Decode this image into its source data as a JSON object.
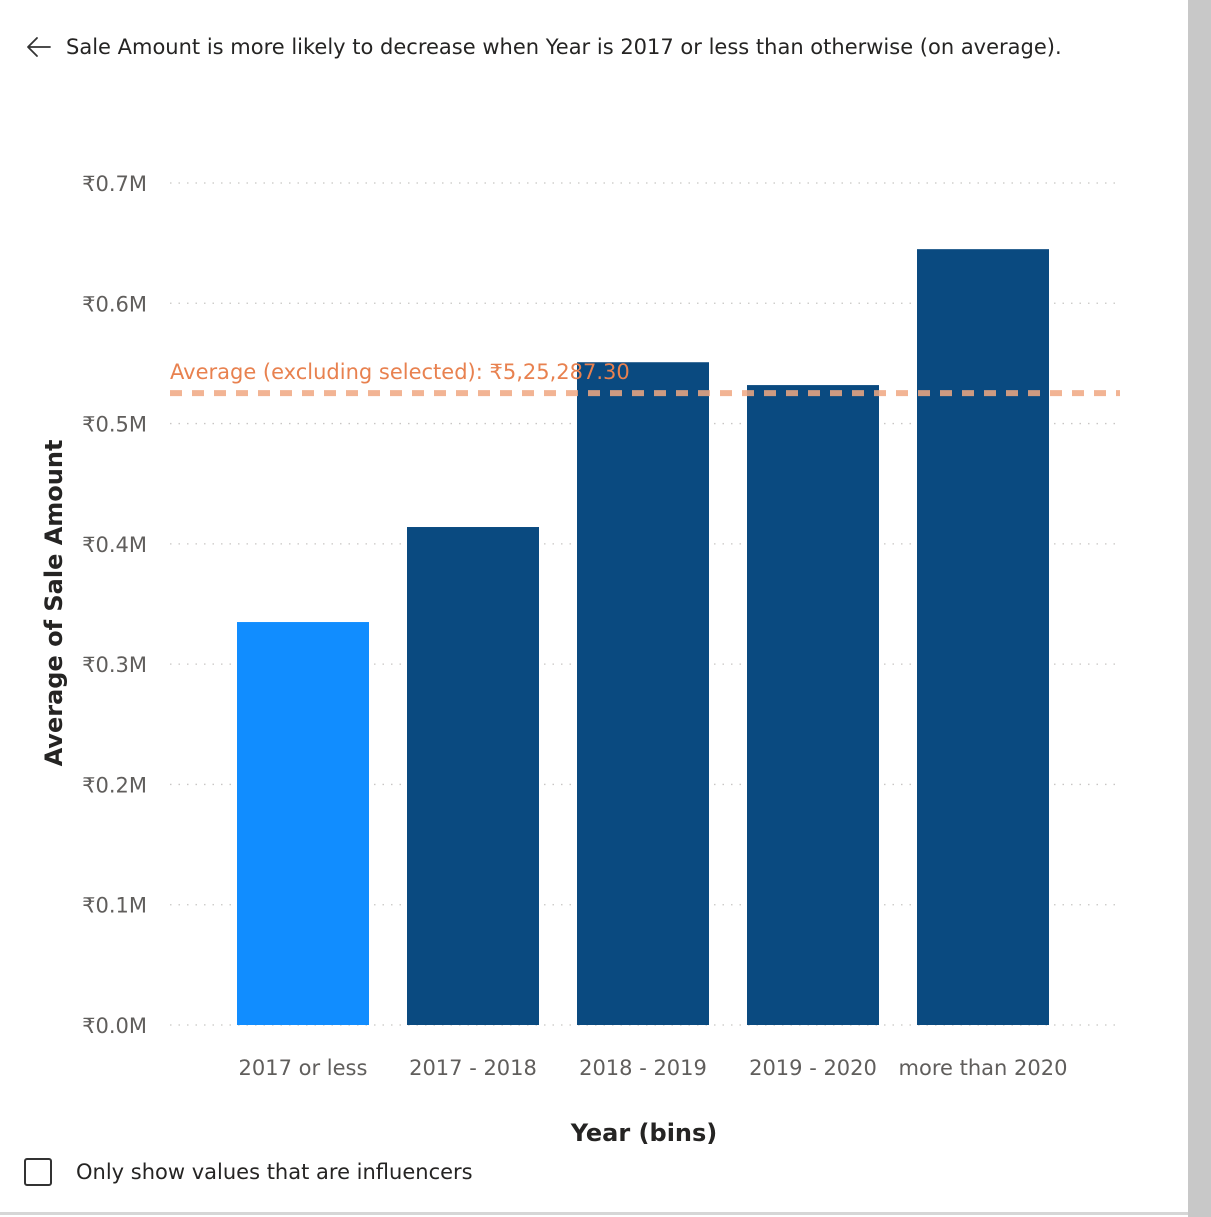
{
  "header": {
    "back_icon": "arrow-left-icon",
    "title": "Sale Amount is more likely to decrease when Year is 2017 or less than otherwise (on average)."
  },
  "chart_data": {
    "type": "bar",
    "title": "",
    "xlabel": "Year (bins)",
    "ylabel": "Average of Sale Amount",
    "categories": [
      "2017 or less",
      "2017 - 2018",
      "2018 - 2019",
      "2019 - 2020",
      "more than 2020"
    ],
    "values": [
      335000,
      414000,
      551000,
      532000,
      645000
    ],
    "highlighted_index": 0,
    "ylim": [
      0,
      700000
    ],
    "yticks": [
      0,
      100000,
      200000,
      300000,
      400000,
      500000,
      600000,
      700000
    ],
    "ytick_labels": [
      "₹0.0M",
      "₹0.1M",
      "₹0.2M",
      "₹0.3M",
      "₹0.4M",
      "₹0.5M",
      "₹0.6M",
      "₹0.7M"
    ],
    "grid": true,
    "reference_line": {
      "value": 525287.3,
      "label": "Average (excluding selected): ₹5,25,287.30"
    },
    "colors": {
      "highlight": "#118dff",
      "bar": "#0a4a80",
      "reference": "#f0a882",
      "reference_label": "#e8814f"
    }
  },
  "footer": {
    "checkbox_checked": false,
    "checkbox_label": "Only show values that are influencers"
  }
}
